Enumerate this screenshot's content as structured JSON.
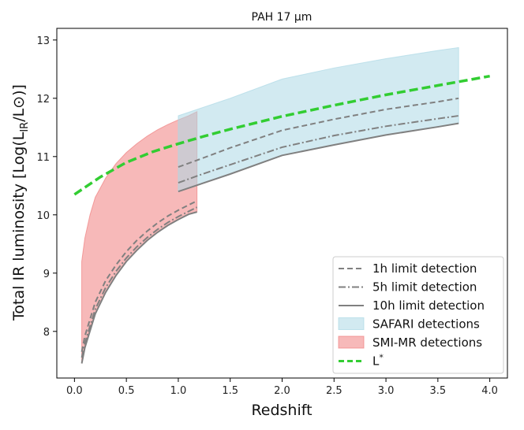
{
  "chart_data": {
    "type": "area",
    "title": "PAH 17 μm",
    "xlabel": "Redshift",
    "ylabel": "Total IR luminosity [Log(L_IR/L⊙)]",
    "xlim": [
      -0.17,
      4.17
    ],
    "ylim": [
      7.2,
      13.2
    ],
    "xticks": [
      "0.0",
      "0.5",
      "1.0",
      "1.5",
      "2.0",
      "2.5",
      "3.0",
      "3.5",
      "4.0"
    ],
    "yticks": [
      "8",
      "9",
      "10",
      "11",
      "12",
      "13"
    ],
    "grid": false,
    "legend_position": "lower-right",
    "legend": [
      "1h limit detection",
      "5h limit detection",
      "10h limit detection",
      "SAFARI detections",
      "SMI-MR detections",
      "L*"
    ],
    "series": [
      {
        "name": "SMI-MR detections",
        "kind": "band",
        "color": "#f08080",
        "x": [
          0.07,
          0.1,
          0.15,
          0.2,
          0.3,
          0.4,
          0.5,
          0.6,
          0.7,
          0.8,
          0.9,
          1.0,
          1.1,
          1.18
        ],
        "upper": [
          9.2,
          9.6,
          10.0,
          10.3,
          10.63,
          10.88,
          11.07,
          11.22,
          11.35,
          11.46,
          11.55,
          11.63,
          11.7,
          11.77
        ],
        "lower": [
          7.45,
          7.75,
          8.05,
          8.3,
          8.67,
          8.96,
          9.2,
          9.39,
          9.56,
          9.7,
          9.82,
          9.92,
          10.01,
          10.05
        ]
      },
      {
        "name": "SAFARI detections",
        "kind": "band",
        "color": "#add8e6",
        "x": [
          1.0,
          1.2,
          1.5,
          2.0,
          2.5,
          3.0,
          3.5,
          3.7
        ],
        "upper": [
          11.7,
          11.82,
          12.0,
          12.33,
          12.52,
          12.68,
          12.82,
          12.87
        ],
        "lower": [
          10.4,
          10.52,
          10.7,
          11.02,
          11.2,
          11.37,
          11.51,
          11.57
        ]
      },
      {
        "name": "1h limit detection",
        "kind": "line",
        "style": "dashed",
        "color": "#808080",
        "segments": [
          {
            "x": [
              0.07,
              0.1,
              0.2,
              0.3,
              0.4,
              0.5,
              0.6,
              0.7,
              0.8,
              0.9,
              1.0,
              1.1,
              1.18
            ],
            "y": [
              7.65,
              7.92,
              8.5,
              8.87,
              9.14,
              9.37,
              9.56,
              9.72,
              9.86,
              9.98,
              10.08,
              10.17,
              10.24
            ]
          },
          {
            "x": [
              1.0,
              1.2,
              1.5,
              2.0,
              2.5,
              3.0,
              3.5,
              3.7
            ],
            "y": [
              10.82,
              10.95,
              11.15,
              11.45,
              11.64,
              11.81,
              11.94,
              12.0
            ]
          }
        ]
      },
      {
        "name": "5h limit detection",
        "kind": "line",
        "style": "dashdot",
        "color": "#808080",
        "segments": [
          {
            "x": [
              0.07,
              0.1,
              0.2,
              0.3,
              0.4,
              0.5,
              0.6,
              0.7,
              0.8,
              0.9,
              1.0,
              1.1,
              1.18
            ],
            "y": [
              7.55,
              7.8,
              8.38,
              8.75,
              9.03,
              9.26,
              9.45,
              9.61,
              9.75,
              9.87,
              9.97,
              10.06,
              10.13
            ]
          },
          {
            "x": [
              1.0,
              1.2,
              1.5,
              2.0,
              2.5,
              3.0,
              3.5,
              3.7
            ],
            "y": [
              10.55,
              10.68,
              10.86,
              11.16,
              11.36,
              11.52,
              11.65,
              11.7
            ]
          }
        ]
      },
      {
        "name": "10h limit detection",
        "kind": "line",
        "style": "solid",
        "color": "#808080",
        "segments": [
          {
            "x": [
              0.07,
              0.1,
              0.2,
              0.3,
              0.4,
              0.5,
              0.6,
              0.7,
              0.8,
              0.9,
              1.0,
              1.1,
              1.18
            ],
            "y": [
              7.45,
              7.72,
              8.3,
              8.67,
              8.96,
              9.2,
              9.39,
              9.56,
              9.7,
              9.82,
              9.92,
              10.01,
              10.05
            ]
          },
          {
            "x": [
              1.0,
              1.2,
              1.5,
              2.0,
              2.5,
              3.0,
              3.5,
              3.7
            ],
            "y": [
              10.4,
              10.52,
              10.7,
              11.02,
              11.2,
              11.37,
              11.51,
              11.57
            ]
          }
        ]
      },
      {
        "name": "L*",
        "kind": "line",
        "style": "dashed",
        "color": "#32cd32",
        "x": [
          0.0,
          0.25,
          0.5,
          0.75,
          1.0,
          1.25,
          1.5,
          1.75,
          2.0,
          2.5,
          3.0,
          3.5,
          4.0
        ],
        "y": [
          10.35,
          10.65,
          10.9,
          11.08,
          11.22,
          11.35,
          11.47,
          11.58,
          11.69,
          11.88,
          12.06,
          12.22,
          12.38
        ]
      }
    ]
  }
}
